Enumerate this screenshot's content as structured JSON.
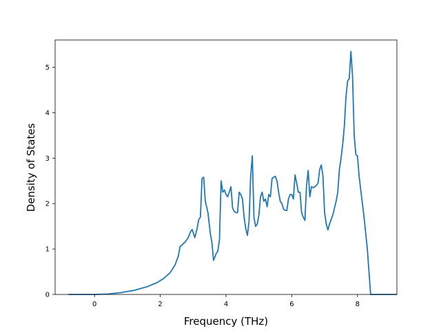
{
  "chart_data": {
    "type": "line",
    "title": "",
    "xlabel": "Frequency (THz)",
    "ylabel": "Density of States",
    "xlim": [
      -1.2,
      9.2
    ],
    "ylim": [
      0,
      5.6
    ],
    "xticks": [
      0,
      2,
      4,
      6,
      8
    ],
    "yticks": [
      0,
      1,
      2,
      3,
      4,
      5
    ],
    "grid": false,
    "series": [
      {
        "color": "#1f77b4",
        "points": [
          [
            -0.8,
            0.0
          ],
          [
            0.0,
            0.0
          ],
          [
            0.4,
            0.01
          ],
          [
            0.8,
            0.04
          ],
          [
            1.2,
            0.09
          ],
          [
            1.6,
            0.17
          ],
          [
            1.9,
            0.26
          ],
          [
            2.1,
            0.35
          ],
          [
            2.3,
            0.48
          ],
          [
            2.45,
            0.65
          ],
          [
            2.55,
            0.85
          ],
          [
            2.6,
            1.05
          ],
          [
            2.75,
            1.15
          ],
          [
            2.85,
            1.25
          ],
          [
            2.92,
            1.38
          ],
          [
            2.97,
            1.43
          ],
          [
            3.05,
            1.25
          ],
          [
            3.12,
            1.45
          ],
          [
            3.17,
            1.65
          ],
          [
            3.22,
            1.7
          ],
          [
            3.27,
            2.55
          ],
          [
            3.32,
            2.58
          ],
          [
            3.37,
            2.05
          ],
          [
            3.45,
            1.8
          ],
          [
            3.52,
            1.35
          ],
          [
            3.57,
            1.15
          ],
          [
            3.62,
            0.75
          ],
          [
            3.7,
            0.9
          ],
          [
            3.75,
            0.95
          ],
          [
            3.8,
            1.2
          ],
          [
            3.85,
            2.5
          ],
          [
            3.9,
            2.25
          ],
          [
            3.95,
            2.3
          ],
          [
            4.0,
            2.2
          ],
          [
            4.05,
            2.15
          ],
          [
            4.1,
            2.25
          ],
          [
            4.15,
            2.37
          ],
          [
            4.2,
            1.9
          ],
          [
            4.25,
            1.83
          ],
          [
            4.3,
            1.8
          ],
          [
            4.35,
            1.8
          ],
          [
            4.4,
            2.25
          ],
          [
            4.45,
            2.2
          ],
          [
            4.5,
            2.1
          ],
          [
            4.55,
            1.7
          ],
          [
            4.6,
            1.45
          ],
          [
            4.65,
            1.3
          ],
          [
            4.7,
            1.6
          ],
          [
            4.75,
            2.6
          ],
          [
            4.8,
            3.05
          ],
          [
            4.85,
            1.7
          ],
          [
            4.9,
            1.5
          ],
          [
            4.95,
            1.55
          ],
          [
            5.0,
            1.75
          ],
          [
            5.05,
            2.15
          ],
          [
            5.1,
            2.25
          ],
          [
            5.15,
            2.05
          ],
          [
            5.2,
            2.1
          ],
          [
            5.25,
            1.93
          ],
          [
            5.3,
            2.2
          ],
          [
            5.35,
            2.15
          ],
          [
            5.4,
            2.55
          ],
          [
            5.45,
            2.58
          ],
          [
            5.5,
            2.6
          ],
          [
            5.55,
            2.5
          ],
          [
            5.6,
            2.25
          ],
          [
            5.65,
            2.05
          ],
          [
            5.7,
            2.0
          ],
          [
            5.75,
            1.88
          ],
          [
            5.8,
            1.85
          ],
          [
            5.85,
            1.85
          ],
          [
            5.9,
            2.1
          ],
          [
            5.95,
            2.2
          ],
          [
            6.0,
            2.2
          ],
          [
            6.05,
            2.1
          ],
          [
            6.1,
            2.63
          ],
          [
            6.15,
            2.45
          ],
          [
            6.2,
            2.25
          ],
          [
            6.25,
            2.25
          ],
          [
            6.3,
            1.8
          ],
          [
            6.35,
            1.7
          ],
          [
            6.4,
            1.63
          ],
          [
            6.45,
            2.4
          ],
          [
            6.5,
            2.73
          ],
          [
            6.55,
            2.15
          ],
          [
            6.6,
            2.37
          ],
          [
            6.65,
            2.35
          ],
          [
            6.7,
            2.37
          ],
          [
            6.75,
            2.4
          ],
          [
            6.8,
            2.45
          ],
          [
            6.85,
            2.75
          ],
          [
            6.9,
            2.85
          ],
          [
            6.95,
            2.6
          ],
          [
            7.0,
            1.8
          ],
          [
            7.05,
            1.55
          ],
          [
            7.1,
            1.42
          ],
          [
            7.15,
            1.55
          ],
          [
            7.2,
            1.65
          ],
          [
            7.25,
            1.75
          ],
          [
            7.3,
            1.9
          ],
          [
            7.35,
            2.05
          ],
          [
            7.4,
            2.25
          ],
          [
            7.45,
            2.75
          ],
          [
            7.5,
            3.0
          ],
          [
            7.55,
            3.3
          ],
          [
            7.6,
            3.7
          ],
          [
            7.65,
            4.35
          ],
          [
            7.7,
            4.7
          ],
          [
            7.75,
            4.75
          ],
          [
            7.8,
            5.35
          ],
          [
            7.85,
            4.8
          ],
          [
            7.9,
            3.5
          ],
          [
            7.95,
            3.08
          ],
          [
            8.0,
            3.05
          ],
          [
            8.05,
            2.6
          ],
          [
            8.1,
            2.3
          ],
          [
            8.15,
            2.0
          ],
          [
            8.2,
            1.7
          ],
          [
            8.25,
            1.35
          ],
          [
            8.3,
            1.0
          ],
          [
            8.35,
            0.5
          ],
          [
            8.4,
            0.0
          ],
          [
            8.7,
            0.0
          ],
          [
            9.2,
            0.0
          ]
        ]
      }
    ]
  }
}
